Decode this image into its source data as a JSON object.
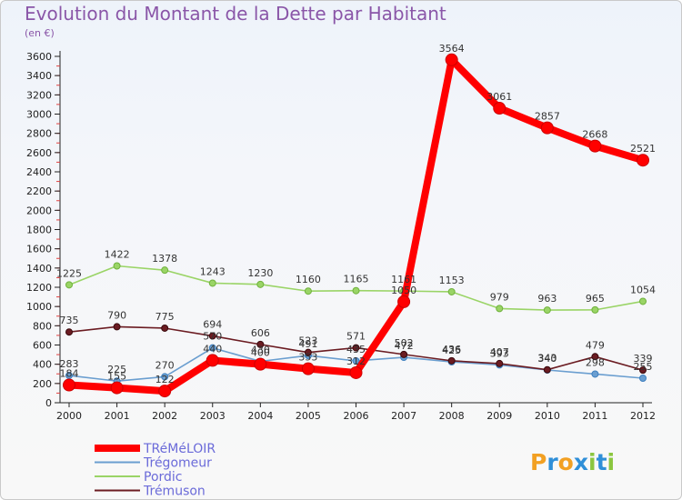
{
  "chart_data": {
    "type": "line",
    "title": "Evolution du Montant de la Dette par Habitant",
    "subtitle": "(en €)",
    "x": [
      "2000",
      "2001",
      "2002",
      "2003",
      "2004",
      "2005",
      "2006",
      "2007",
      "2008",
      "2009",
      "2010",
      "2011",
      "2012"
    ],
    "ylim": [
      0,
      3600
    ],
    "yticks": [
      0,
      200,
      400,
      600,
      800,
      1000,
      1200,
      1400,
      1600,
      1800,
      2000,
      2200,
      2400,
      2600,
      2800,
      3000,
      3200,
      3400,
      3600
    ],
    "grid": false,
    "legend_position": "bottom-left",
    "series": [
      {
        "name": "TRéMéLOIR",
        "color": "#ff0000",
        "values": [
          184,
          155,
          122,
          440,
          400,
          353,
          312,
          1050,
          3564,
          3061,
          2857,
          2668,
          2521
        ]
      },
      {
        "name": "Trégomeur",
        "color": "#6a9ed0",
        "values": [
          283,
          225,
          270,
          570,
          430,
          491,
          435,
          472,
          425,
          393,
          340,
          298,
          255
        ]
      },
      {
        "name": "Pordic",
        "color": "#9ad466",
        "values": [
          1225,
          1422,
          1378,
          1243,
          1230,
          1160,
          1165,
          1161,
          1153,
          979,
          963,
          965,
          1054
        ]
      },
      {
        "name": "Trémuson",
        "color": "#6b1c22",
        "values": [
          735,
          790,
          775,
          694,
          606,
          523,
          571,
          502,
          436,
          407,
          343,
          479,
          339
        ]
      }
    ],
    "labels": {
      "TRéMéLOIR": [
        "184",
        "155",
        "122",
        "440",
        "400",
        "353",
        "312",
        "1050",
        "3564",
        "3061",
        "2857",
        "2668",
        "2521"
      ],
      "Trégomeur": [
        "283",
        "225",
        "270",
        "570",
        "430",
        "491",
        "435",
        "472",
        "425",
        "393",
        "340",
        "298",
        "255"
      ],
      "Pordic": [
        "1225",
        "1422",
        "1378",
        "1243",
        "1230",
        "1160",
        "1165",
        "1161",
        "1153",
        "979",
        "963",
        "965",
        "1054"
      ],
      "Trémuson": [
        "735",
        "790",
        "775",
        "694",
        "606",
        "523",
        "571",
        "502",
        "436",
        "407",
        "343",
        "479",
        "339"
      ]
    }
  },
  "brand": {
    "logo_text": "Proxiti"
  }
}
